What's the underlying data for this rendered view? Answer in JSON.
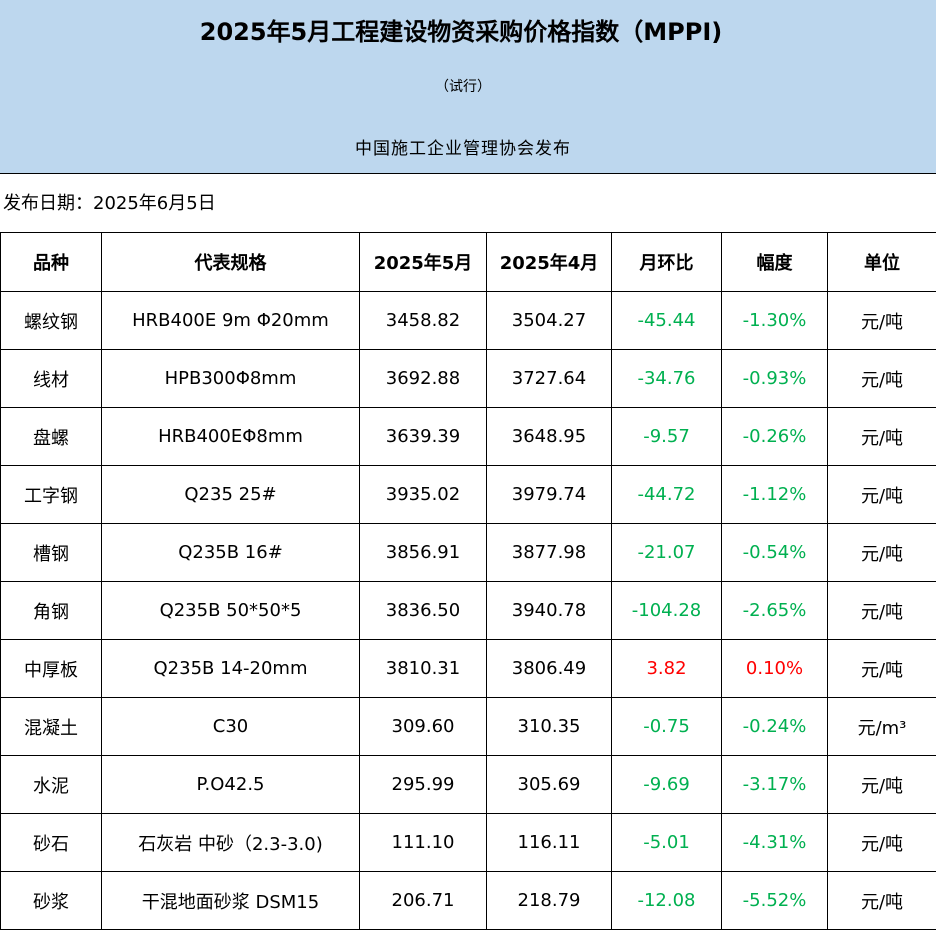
{
  "header": {
    "title": "2025年5月工程建设物资采购价格指数（MPPI)",
    "subtitle": "（试行）",
    "publisher": "中国施工企业管理协会发布"
  },
  "publish_date": "发布日期：2025年6月5日",
  "colors": {
    "banner": "#bdd7ee",
    "decrease": "#00b050",
    "increase": "#ff0000"
  },
  "table": {
    "columns": [
      "品种",
      "代表规格",
      "2025年5月",
      "2025年4月",
      "月环比",
      "幅度",
      "单位"
    ],
    "rows": [
      {
        "item": "螺纹钢",
        "spec": "HRB400E 9m Φ20mm",
        "may": "3458.82",
        "apr": "3504.27",
        "mom": "-45.44",
        "pct": "-1.30%",
        "unit": "元/吨",
        "trend": "down"
      },
      {
        "item": "线材",
        "spec": "HPB300Φ8mm",
        "may": "3692.88",
        "apr": "3727.64",
        "mom": "-34.76",
        "pct": "-0.93%",
        "unit": "元/吨",
        "trend": "down"
      },
      {
        "item": "盘螺",
        "spec": "HRB400EΦ8mm",
        "may": "3639.39",
        "apr": "3648.95",
        "mom": "-9.57",
        "pct": "-0.26%",
        "unit": "元/吨",
        "trend": "down"
      },
      {
        "item": "工字钢",
        "spec": "Q235 25#",
        "may": "3935.02",
        "apr": "3979.74",
        "mom": "-44.72",
        "pct": "-1.12%",
        "unit": "元/吨",
        "trend": "down"
      },
      {
        "item": "槽钢",
        "spec": "Q235B 16#",
        "may": "3856.91",
        "apr": "3877.98",
        "mom": "-21.07",
        "pct": "-0.54%",
        "unit": "元/吨",
        "trend": "down"
      },
      {
        "item": "角钢",
        "spec": "Q235B 50*50*5",
        "may": "3836.50",
        "apr": "3940.78",
        "mom": "-104.28",
        "pct": "-2.65%",
        "unit": "元/吨",
        "trend": "down"
      },
      {
        "item": "中厚板",
        "spec": "Q235B 14-20mm",
        "may": "3810.31",
        "apr": "3806.49",
        "mom": "3.82",
        "pct": "0.10%",
        "unit": "元/吨",
        "trend": "up"
      },
      {
        "item": "混凝土",
        "spec": "C30",
        "may": "309.60",
        "apr": "310.35",
        "mom": "-0.75",
        "pct": "-0.24%",
        "unit": "元/m³",
        "trend": "down"
      },
      {
        "item": "水泥",
        "spec": "P.O42.5",
        "may": "295.99",
        "apr": "305.69",
        "mom": "-9.69",
        "pct": "-3.17%",
        "unit": "元/吨",
        "trend": "down"
      },
      {
        "item": "砂石",
        "spec": "石灰岩 中砂（2.3-3.0)",
        "may": "111.10",
        "apr": "116.11",
        "mom": "-5.01",
        "pct": "-4.31%",
        "unit": "元/吨",
        "trend": "down"
      },
      {
        "item": "砂浆",
        "spec": "干混地面砂浆 DSM15",
        "may": "206.71",
        "apr": "218.79",
        "mom": "-12.08",
        "pct": "-5.52%",
        "unit": "元/吨",
        "trend": "down"
      }
    ]
  }
}
